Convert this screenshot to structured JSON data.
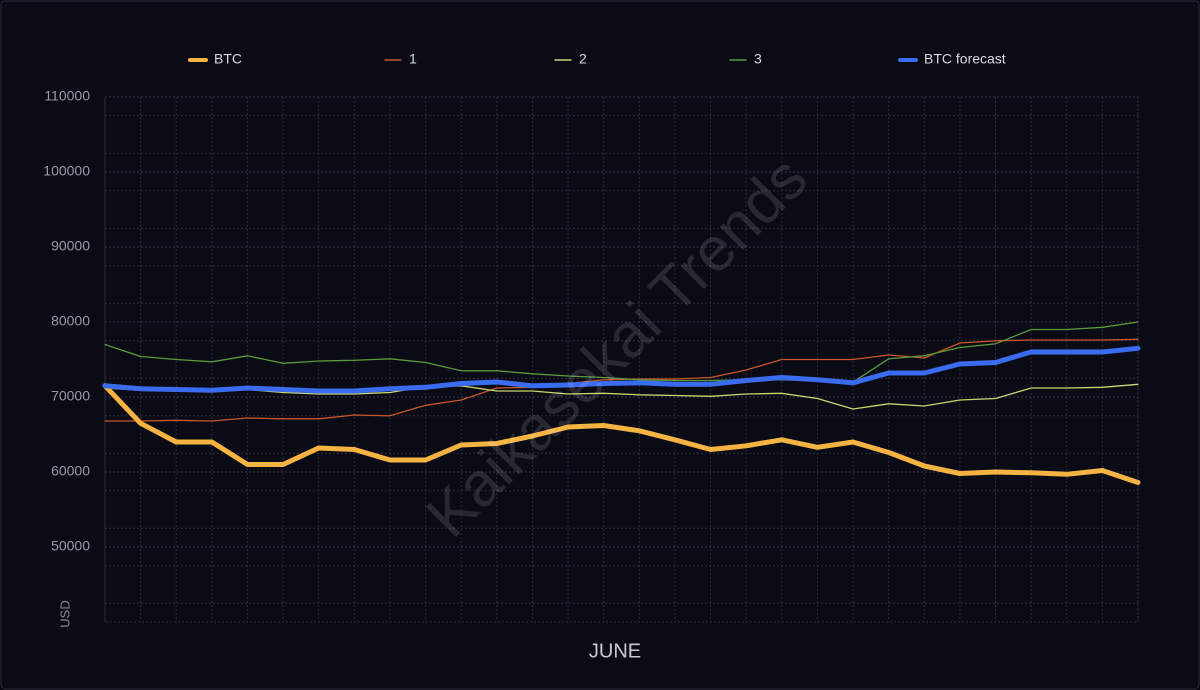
{
  "chart_data": {
    "type": "line",
    "annotation": "Kaikasekai Trends",
    "x_label": "JUNE",
    "y_label": "USD",
    "categories": [
      null,
      null,
      null,
      null,
      null,
      null,
      null,
      null,
      null,
      null,
      null,
      null,
      null,
      null,
      null,
      null,
      null,
      null,
      null,
      null,
      null,
      null,
      null,
      null,
      null,
      null,
      null,
      null,
      null,
      null
    ],
    "ylim": [
      40000,
      110000
    ],
    "yticks": [
      50000,
      60000,
      70000,
      80000,
      90000,
      100000,
      110000
    ],
    "grid": true,
    "series": [
      {
        "name": "BTC",
        "color": "#f5b342",
        "width": 5,
        "values": [
          71500,
          66500,
          64000,
          64000,
          61000,
          61000,
          63200,
          63000,
          61600,
          61600,
          63600,
          63800,
          64800,
          66000,
          66200,
          65500,
          64300,
          63000,
          63500,
          64300,
          63300,
          64000,
          62600,
          60800,
          59800,
          60000,
          59900,
          59700,
          60200,
          58600
        ]
      },
      {
        "name": "1",
        "color": "#c8562a",
        "width": 1.3,
        "values": [
          66800,
          66800,
          66900,
          66800,
          67200,
          67100,
          67100,
          67600,
          67500,
          68900,
          69600,
          71200,
          71300,
          71800,
          72300,
          72400,
          72400,
          72600,
          73600,
          75000,
          75000,
          75000,
          75600,
          75200,
          77200,
          77500,
          77600,
          77600,
          77600,
          77700
        ]
      },
      {
        "name": "2",
        "color": "#c9d66e",
        "width": 1.3,
        "values": [
          71200,
          70900,
          70800,
          70700,
          71000,
          70600,
          70400,
          70400,
          70600,
          71400,
          71500,
          70800,
          70800,
          70400,
          70500,
          70300,
          70200,
          70100,
          70400,
          70500,
          69800,
          68400,
          69100,
          68800,
          69600,
          69800,
          71200,
          71200,
          71300,
          71700
        ]
      },
      {
        "name": "3",
        "color": "#5a9a3a",
        "width": 1.3,
        "values": [
          77000,
          75400,
          75000,
          74700,
          75500,
          74500,
          74800,
          74900,
          75100,
          74600,
          73500,
          73500,
          73100,
          72800,
          72600,
          72300,
          72200,
          72200,
          72300,
          72300,
          72200,
          72000,
          75100,
          75500,
          76600,
          77100,
          79000,
          79000,
          79300,
          80000
        ]
      },
      {
        "name": "BTC forecast",
        "color": "#3a6cf0",
        "width": 5,
        "values": [
          71500,
          71100,
          71000,
          70900,
          71200,
          71000,
          70800,
          70800,
          71100,
          71300,
          71800,
          72000,
          71500,
          71600,
          71800,
          71900,
          71700,
          71700,
          72200,
          72600,
          72300,
          71900,
          73200,
          73200,
          74400,
          74600,
          76000,
          76000,
          76000,
          76500
        ]
      }
    ]
  }
}
